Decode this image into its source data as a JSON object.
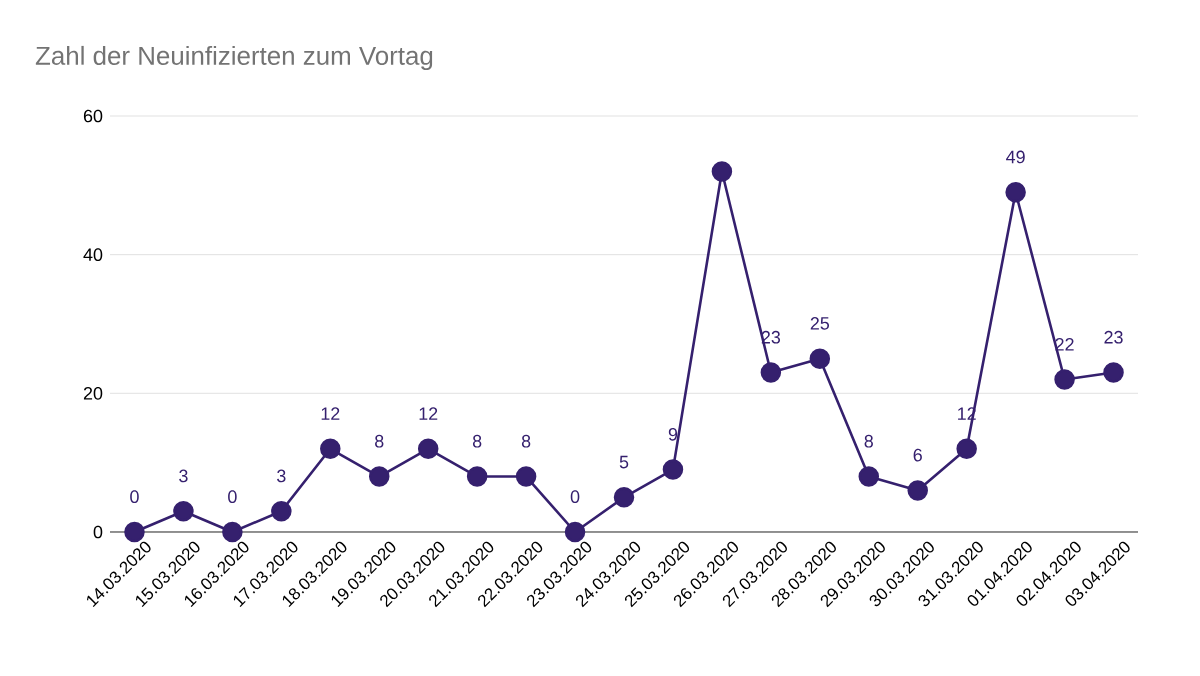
{
  "chart_data": {
    "type": "line",
    "title": "Zahl der Neuinfizierten zum Vortag",
    "categories": [
      "14.03.2020",
      "15.03.2020",
      "16.03.2020",
      "17.03.2020",
      "18.03.2020",
      "19.03.2020",
      "20.03.2020",
      "21.03.2020",
      "22.03.2020",
      "23.03.2020",
      "24.03.2020",
      "25.03.2020",
      "26.03.2020",
      "27.03.2020",
      "28.03.2020",
      "29.03.2020",
      "30.03.2020",
      "31.03.2020",
      "01.04.2020",
      "02.04.2020",
      "03.04.2020"
    ],
    "series": [
      {
        "color": "#35206e",
        "values": [
          0,
          3,
          0,
          3,
          12,
          8,
          12,
          8,
          8,
          0,
          5,
          9,
          52,
          23,
          25,
          8,
          6,
          12,
          49,
          22,
          23
        ],
        "value_labels": [
          "0",
          "3",
          "0",
          "3",
          "12",
          "8",
          "12",
          "8",
          "8",
          "0",
          "5",
          "9",
          null,
          "23",
          "25",
          "8",
          "6",
          "12",
          "49",
          "22",
          "23"
        ]
      }
    ],
    "ylim": [
      0,
      60
    ],
    "yticks": [
      0,
      20,
      40,
      60
    ],
    "grid": "y",
    "marker": "circle",
    "line_style": "solid"
  }
}
